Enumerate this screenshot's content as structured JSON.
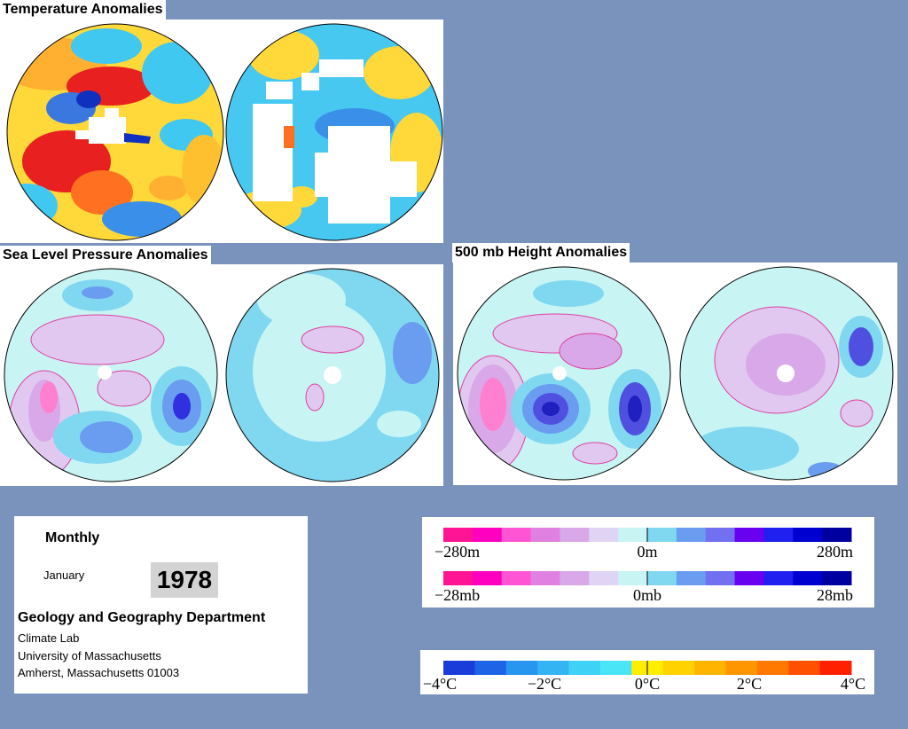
{
  "sections": {
    "temperature_title": "Temperature Anomalies",
    "slp_title": "Sea Level Pressure Anomalies",
    "height_title": "500 mb Height Anomalies"
  },
  "info": {
    "mode": "Monthly",
    "month": "January",
    "year": "1978",
    "department": "Geology and Geography Department",
    "lab": "Climate Lab",
    "university": "University of Massachusetts",
    "address": "Amherst, Massachusetts 01003"
  },
  "legends": {
    "height": {
      "labels": [
        "−280m",
        "0m",
        "280m"
      ],
      "colors": [
        "#ff1493",
        "#ff00c0",
        "#ff55d4",
        "#e080e0",
        "#d8a8e8",
        "#e0d4f4",
        "#c8f4f4",
        "#80d8f0",
        "#6a9cf0",
        "#7070f0",
        "#6a00f0",
        "#2020f0",
        "#0000d0",
        "#0000a0"
      ]
    },
    "pressure": {
      "labels": [
        "−28mb",
        "0mb",
        "28mb"
      ],
      "colors": [
        "#ff1493",
        "#ff00c0",
        "#ff55d4",
        "#e080e0",
        "#d8a8e8",
        "#e0d4f4",
        "#c8f4f4",
        "#80d8f0",
        "#6a9cf0",
        "#7070f0",
        "#6a00f0",
        "#2020f0",
        "#0000d0",
        "#0000a0"
      ]
    },
    "temperature": {
      "labels": [
        "−4°C",
        "−2°C",
        "0°C",
        "2°C",
        "4°C"
      ],
      "colors": [
        "#1a3cd8",
        "#1e64e6",
        "#2896ee",
        "#34b4f2",
        "#40d2f6",
        "#4ae6f8",
        "#ffee00",
        "#ffd200",
        "#ffb400",
        "#ff9600",
        "#ff7800",
        "#ff5000",
        "#ff2000"
      ]
    }
  },
  "colors": {
    "background": "#7a93bd",
    "temp_north_fill": "#ffd83a",
    "temp_south_fill": "#46c8f0",
    "pressure_base": "#c8f4f4",
    "pressure_light_blue": "#80d8f0",
    "pressure_pink": "#e0c8f0"
  },
  "maps": [
    {
      "name": "temperature-north-hemisphere-map"
    },
    {
      "name": "temperature-south-hemisphere-map"
    },
    {
      "name": "pressure-north-hemisphere-map"
    },
    {
      "name": "pressure-south-hemisphere-map"
    },
    {
      "name": "height-north-hemisphere-map"
    },
    {
      "name": "height-south-hemisphere-map"
    }
  ]
}
